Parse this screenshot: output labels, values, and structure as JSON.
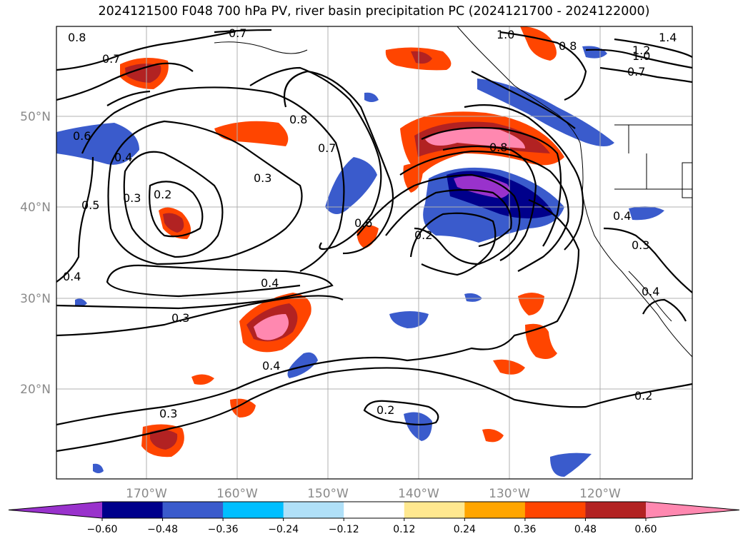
{
  "title": "2024121500 F048 700 hPa PV, river basin precipitation PC (2024121700 - 2024122000)",
  "lat_labels": [
    "50°N",
    "40°N",
    "30°N",
    "20°N"
  ],
  "lon_labels": [
    "170°W",
    "160°W",
    "150°W",
    "140°W",
    "130°W",
    "120°W"
  ],
  "colorbar": {
    "colors": [
      "#9932cc",
      "#00008b",
      "#3a5bcc",
      "#00bfff",
      "#b0e0f8",
      "#ffffff",
      "#ffe88f",
      "#ffa500",
      "#ff4500",
      "#b22222",
      "#ff88b0"
    ],
    "ticks": [
      "−0.60",
      "−0.48",
      "−0.36",
      "−0.24",
      "−0.12",
      "0.12",
      "0.24",
      "0.36",
      "0.48",
      "0.60"
    ]
  },
  "contour_labels": [
    "0.8",
    "0.7",
    "0.6",
    "0.4",
    "0.3",
    "0.2",
    "0.5",
    "0.4",
    "0.8",
    "0.7",
    "0.3",
    "0.4",
    "0.3",
    "0.4",
    "0.3",
    "0.2",
    "0.6",
    "0.8",
    "0.2",
    "0.2",
    "1.0",
    "1.2",
    "1.4",
    "1.0",
    "0.7",
    "0.4",
    "0.3",
    "0.4",
    "0.8",
    "0.7"
  ]
}
